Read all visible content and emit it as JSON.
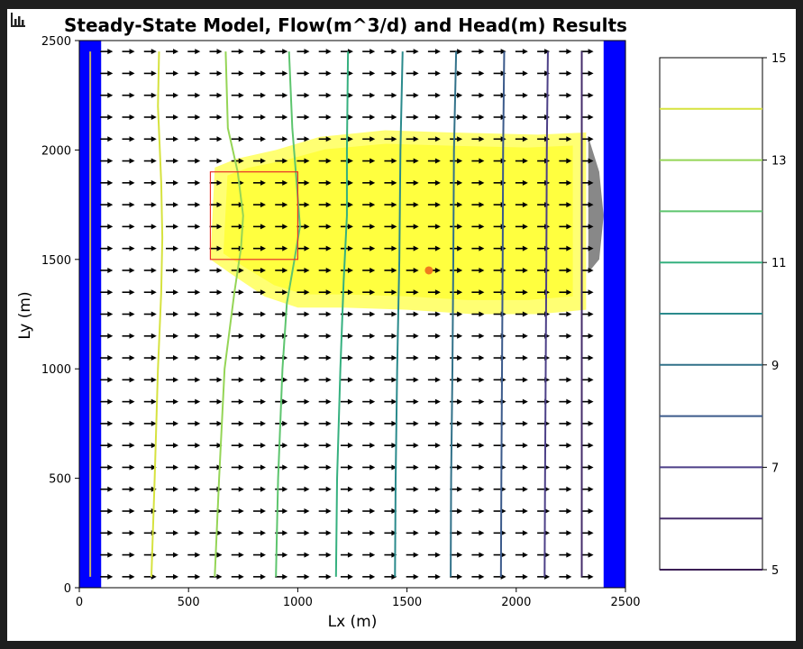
{
  "chart_data": {
    "type": "contour",
    "title": "Steady-State Model, Flow(m^3/d) and Head(m) Results",
    "xlabel": "Lx (m)",
    "ylabel": "Ly (m)",
    "xlim": [
      0,
      2500
    ],
    "ylim": [
      0,
      2500
    ],
    "xticks": [
      "0",
      "500",
      "1000",
      "1500",
      "2000",
      "2500"
    ],
    "yticks": [
      "0",
      "500",
      "1000",
      "1500",
      "2000",
      "2500"
    ],
    "constant_head_columns_x": [
      [
        0,
        100
      ],
      [
        2400,
        2500
      ]
    ],
    "well_line_x": 50,
    "source_box": {
      "x": [
        600,
        1000
      ],
      "y": [
        1500,
        1900
      ]
    },
    "well_point": {
      "x": 1600,
      "y": 1450
    },
    "contour_levels": [
      14.0,
      13.0,
      12.0,
      11.0,
      10.0,
      9.0,
      8.0,
      7.0,
      6.0
    ],
    "contour_colors": [
      "#d6e23f",
      "#95d556",
      "#5dc56e",
      "#35b07f",
      "#2a8a8c",
      "#317189",
      "#3b5a8b",
      "#4c3f87",
      "#452c6b"
    ],
    "contours": [
      {
        "level": 14.0,
        "points": [
          [
            330,
            50
          ],
          [
            345,
            500
          ],
          [
            360,
            1000
          ],
          [
            375,
            1350
          ],
          [
            380,
            1600
          ],
          [
            375,
            1850
          ],
          [
            360,
            2200
          ],
          [
            365,
            2450
          ]
        ]
      },
      {
        "level": 13.0,
        "points": [
          [
            620,
            50
          ],
          [
            640,
            500
          ],
          [
            665,
            1000
          ],
          [
            710,
            1350
          ],
          [
            740,
            1550
          ],
          [
            750,
            1700
          ],
          [
            725,
            1900
          ],
          [
            680,
            2100
          ],
          [
            670,
            2450
          ]
        ]
      },
      {
        "level": 12.0,
        "points": [
          [
            900,
            50
          ],
          [
            910,
            500
          ],
          [
            930,
            1000
          ],
          [
            950,
            1300
          ],
          [
            985,
            1500
          ],
          [
            1010,
            1650
          ],
          [
            995,
            1850
          ],
          [
            975,
            2100
          ],
          [
            960,
            2450
          ]
        ]
      },
      {
        "level": 11.0,
        "points": [
          [
            1175,
            50
          ],
          [
            1180,
            500
          ],
          [
            1195,
            1000
          ],
          [
            1210,
            1400
          ],
          [
            1225,
            1700
          ],
          [
            1225,
            2000
          ],
          [
            1230,
            2450
          ]
        ]
      },
      {
        "level": 10.0,
        "points": [
          [
            1445,
            50
          ],
          [
            1448,
            500
          ],
          [
            1455,
            1000
          ],
          [
            1465,
            1500
          ],
          [
            1470,
            2000
          ],
          [
            1480,
            2450
          ]
        ]
      },
      {
        "level": 9.0,
        "points": [
          [
            1700,
            50
          ],
          [
            1702,
            500
          ],
          [
            1708,
            1000
          ],
          [
            1712,
            1500
          ],
          [
            1715,
            2000
          ],
          [
            1725,
            2450
          ]
        ]
      },
      {
        "level": 8.0,
        "points": [
          [
            1930,
            50
          ],
          [
            1932,
            500
          ],
          [
            1935,
            1000
          ],
          [
            1938,
            1500
          ],
          [
            1940,
            2000
          ],
          [
            1945,
            2450
          ]
        ]
      },
      {
        "level": 7.0,
        "points": [
          [
            2130,
            50
          ],
          [
            2132,
            500
          ],
          [
            2135,
            1000
          ],
          [
            2138,
            1500
          ],
          [
            2140,
            2000
          ],
          [
            2145,
            2450
          ]
        ]
      },
      {
        "level": 6.0,
        "points": [
          [
            2300,
            50
          ],
          [
            2300,
            500
          ],
          [
            2300,
            1000
          ],
          [
            2300,
            1500
          ],
          [
            2300,
            2000
          ],
          [
            2300,
            2450
          ]
        ]
      }
    ],
    "plume_color": "#ffff00",
    "plume_outline": [
      [
        600,
        1500
      ],
      [
        700,
        1430
      ],
      [
        850,
        1330
      ],
      [
        1000,
        1280
      ],
      [
        1200,
        1280
      ],
      [
        1500,
        1270
      ],
      [
        1800,
        1250
      ],
      [
        2100,
        1250
      ],
      [
        2320,
        1270
      ],
      [
        2320,
        2080
      ],
      [
        2100,
        2070
      ],
      [
        1700,
        2080
      ],
      [
        1400,
        2090
      ],
      [
        1100,
        2060
      ],
      [
        900,
        2000
      ],
      [
        720,
        1960
      ],
      [
        620,
        1920
      ]
    ],
    "colorbar": {
      "ticks": [
        "15",
        "13",
        "11",
        "9",
        "7",
        "5"
      ],
      "range": [
        5,
        15
      ],
      "levels": [
        14.0,
        13.0,
        12.0,
        11.0,
        10.0,
        9.0,
        8.0,
        7.0,
        6.0,
        5.0
      ],
      "level_colors": [
        "#d6e23f",
        "#95d556",
        "#5dc56e",
        "#35b07f",
        "#2a8a8c",
        "#317189",
        "#3b5a8b",
        "#4c3f87",
        "#452c6b",
        "#3b1f55"
      ]
    },
    "quiver": {
      "direction": "+x",
      "color": "#000000"
    }
  }
}
